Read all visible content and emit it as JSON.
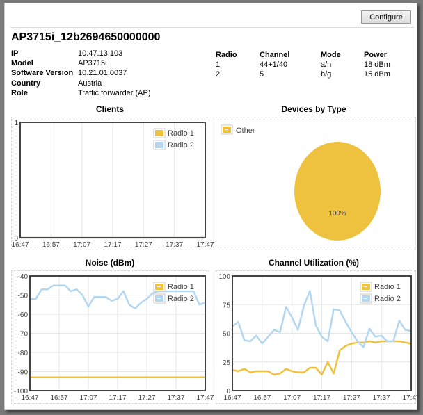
{
  "toolbar": {
    "configure_label": "Configure"
  },
  "ap": {
    "name": "AP3715i_12b2694650000000",
    "info": [
      {
        "label": "IP",
        "value": "10.47.13.103"
      },
      {
        "label": "Model",
        "value": "AP3715i"
      },
      {
        "label": "Software Version",
        "value": "10.21.01.0037"
      },
      {
        "label": "Country",
        "value": "Austria"
      },
      {
        "label": "Role",
        "value": "Traffic forwarder (AP)"
      }
    ]
  },
  "radios": {
    "headers": [
      "Radio",
      "Channel",
      "Mode",
      "Power"
    ],
    "rows": [
      [
        "1",
        "44+1/40",
        "a/n",
        "18 dBm"
      ],
      [
        "2",
        "5",
        "b/g",
        "15 dBm"
      ]
    ]
  },
  "colors": {
    "radio1": "#eec13f",
    "radio2": "#b3d7f0",
    "pie": "#eec13f"
  },
  "chart_data": [
    {
      "type": "line",
      "title": "Clients",
      "ylim": [
        0,
        1
      ],
      "yticks": [
        "0",
        "1"
      ],
      "xticks": [
        "16:47",
        "16:57",
        "17:07",
        "17:17",
        "17:27",
        "17:37",
        "17:47"
      ],
      "legend": "top-right",
      "grid": true,
      "series": [
        {
          "name": "Radio 1",
          "x": [
            "16:47",
            "17:47"
          ],
          "values": [
            0,
            0
          ]
        },
        {
          "name": "Radio 2",
          "x": [
            "16:47",
            "17:47"
          ],
          "values": [
            0,
            0
          ]
        }
      ]
    },
    {
      "type": "pie",
      "title": "Devices by Type",
      "legend": "top-left",
      "slices": [
        {
          "name": "Other",
          "value": 100,
          "label": "100%"
        }
      ]
    },
    {
      "type": "line",
      "title": "Noise (dBm)",
      "ylim": [
        -100,
        -40
      ],
      "yticks": [
        "-40",
        "-50",
        "-60",
        "-70",
        "-80",
        "-90",
        "-100"
      ],
      "xticks": [
        "16:47",
        "16:57",
        "17:07",
        "17:17",
        "17:27",
        "17:37",
        "17:47"
      ],
      "legend": "top-right",
      "grid": true,
      "series": [
        {
          "name": "Radio 1",
          "x": [
            "16:47",
            "17:47"
          ],
          "values": [
            -93,
            -93
          ]
        },
        {
          "name": "Radio 2",
          "x": [
            "16:47",
            "16:49",
            "16:51",
            "16:53",
            "16:55",
            "16:59",
            "17:01",
            "17:03",
            "17:05",
            "17:07",
            "17:09",
            "17:13",
            "17:15",
            "17:17",
            "17:19",
            "17:21",
            "17:23",
            "17:25",
            "17:27",
            "17:29",
            "17:31",
            "17:41",
            "17:43",
            "17:45",
            "17:47"
          ],
          "values": [
            -52,
            -52,
            -47,
            -47,
            -45,
            -45,
            -48,
            -47,
            -50,
            -56,
            -51,
            -51,
            -53,
            -52,
            -48,
            -55,
            -57,
            -54,
            -52,
            -49,
            -48,
            -48,
            -48,
            -55,
            -54
          ]
        }
      ]
    },
    {
      "type": "line",
      "title": "Channel Utilization (%)",
      "ylim": [
        0,
        100
      ],
      "yticks": [
        "0",
        "25",
        "50",
        "75",
        "100"
      ],
      "xticks": [
        "16:47",
        "16:57",
        "17:07",
        "17:17",
        "17:27",
        "17:37",
        "17:47"
      ],
      "legend": "top-right",
      "grid": true,
      "series": [
        {
          "name": "Radio 1",
          "x": [
            "16:47",
            "16:49",
            "16:51",
            "16:53",
            "16:55",
            "16:59",
            "17:01",
            "17:03",
            "17:05",
            "17:07",
            "17:09",
            "17:11",
            "17:13",
            "17:15",
            "17:17",
            "17:19",
            "17:21",
            "17:23",
            "17:25",
            "17:27",
            "17:29",
            "17:31",
            "17:33",
            "17:35",
            "17:37",
            "17:39",
            "17:41",
            "17:43",
            "17:45",
            "17:47"
          ],
          "values": [
            18,
            17,
            19,
            16,
            17,
            17,
            14,
            15,
            19,
            17,
            16,
            16,
            20,
            20,
            14,
            25,
            15,
            35,
            39,
            41,
            42,
            42,
            43,
            42,
            43,
            43,
            43,
            43,
            42,
            41
          ]
        },
        {
          "name": "Radio 2",
          "x": [
            "16:47",
            "16:49",
            "16:51",
            "16:53",
            "16:55",
            "16:57",
            "16:59",
            "17:01",
            "17:03",
            "17:05",
            "17:07",
            "17:09",
            "17:11",
            "17:13",
            "17:15",
            "17:17",
            "17:19",
            "17:21",
            "17:23",
            "17:25",
            "17:27",
            "17:29",
            "17:31",
            "17:33",
            "17:35",
            "17:37",
            "17:39",
            "17:41",
            "17:43",
            "17:45",
            "17:47"
          ],
          "values": [
            56,
            60,
            44,
            43,
            48,
            41,
            47,
            53,
            51,
            73,
            64,
            53,
            74,
            87,
            57,
            47,
            43,
            71,
            70,
            60,
            51,
            43,
            38,
            54,
            47,
            48,
            43,
            43,
            61,
            53,
            52
          ]
        }
      ]
    }
  ]
}
